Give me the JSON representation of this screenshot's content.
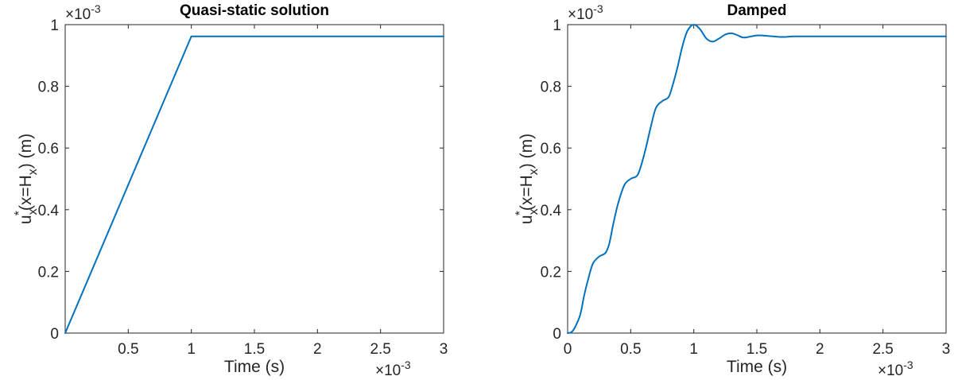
{
  "chart_data": [
    {
      "type": "line",
      "title": "Quasi-static solution",
      "xlabel": "Time (s)",
      "ylabel_main": "u",
      "ylabel_sub": "x",
      "ylabel_sup": "*",
      "ylabel_mid": "(x=H",
      "ylabel_mid_sub": "x",
      "ylabel_end": ")  (m)",
      "x_exponent_base": "×10",
      "x_exponent_power": "-3",
      "y_exponent_base": "×10",
      "y_exponent_power": "-3",
      "xlim": [
        0,
        3
      ],
      "ylim": [
        0,
        1
      ],
      "xticks": [
        0.5,
        1,
        1.5,
        2,
        2.5,
        3
      ],
      "xtick_labels": [
        "0.5",
        "1",
        "1.5",
        "2",
        "2.5",
        "3"
      ],
      "yticks": [
        0,
        0.2,
        0.4,
        0.6,
        0.8,
        1
      ],
      "ytick_labels": [
        "0",
        "0.2",
        "0.4",
        "0.6",
        "0.8",
        "1"
      ],
      "grid": false,
      "color": "#0072BD",
      "series": [
        {
          "x": [
            0,
            1,
            3
          ],
          "y": [
            0,
            0.962,
            0.962
          ]
        }
      ]
    },
    {
      "type": "line",
      "title": "Damped",
      "xlabel": "Time (s)",
      "ylabel_main": "u",
      "ylabel_sub": "x",
      "ylabel_sup": "*",
      "ylabel_mid": "(x=H",
      "ylabel_mid_sub": "x",
      "ylabel_end": ")  (m)",
      "x_exponent_base": "×10",
      "x_exponent_power": "-3",
      "y_exponent_base": "×10",
      "y_exponent_power": "-3",
      "xlim": [
        0,
        3
      ],
      "ylim": [
        0,
        1
      ],
      "xticks": [
        0,
        0.5,
        1,
        1.5,
        2,
        2.5,
        3
      ],
      "xtick_labels": [
        "0",
        "0.5",
        "1",
        "1.5",
        "2",
        "2.5",
        "3"
      ],
      "yticks": [
        0,
        0.2,
        0.4,
        0.6,
        0.8,
        1
      ],
      "ytick_labels": [
        "0",
        "0.2",
        "0.4",
        "0.6",
        "0.8",
        "1"
      ],
      "grid": false,
      "color": "#0072BD",
      "series": [
        {
          "x": [
            0,
            0.03,
            0.06,
            0.1,
            0.13,
            0.16,
            0.2,
            0.25,
            0.3,
            0.33,
            0.36,
            0.4,
            0.45,
            0.5,
            0.55,
            0.58,
            0.62,
            0.66,
            0.7,
            0.75,
            0.8,
            0.83,
            0.87,
            0.91,
            0.95,
            1.0,
            1.05,
            1.1,
            1.15,
            1.2,
            1.25,
            1.3,
            1.35,
            1.4,
            1.5,
            1.6,
            1.7,
            1.8,
            2.0,
            2.2,
            2.5,
            2.8,
            3.0
          ],
          "y": [
            0,
            0.003,
            0.02,
            0.06,
            0.12,
            0.17,
            0.225,
            0.248,
            0.26,
            0.29,
            0.35,
            0.42,
            0.48,
            0.5,
            0.51,
            0.54,
            0.6,
            0.67,
            0.73,
            0.752,
            0.765,
            0.8,
            0.86,
            0.93,
            0.98,
            1.0,
            0.985,
            0.955,
            0.945,
            0.955,
            0.968,
            0.972,
            0.965,
            0.958,
            0.965,
            0.963,
            0.96,
            0.962,
            0.962,
            0.962,
            0.962,
            0.962,
            0.962
          ]
        }
      ]
    }
  ]
}
